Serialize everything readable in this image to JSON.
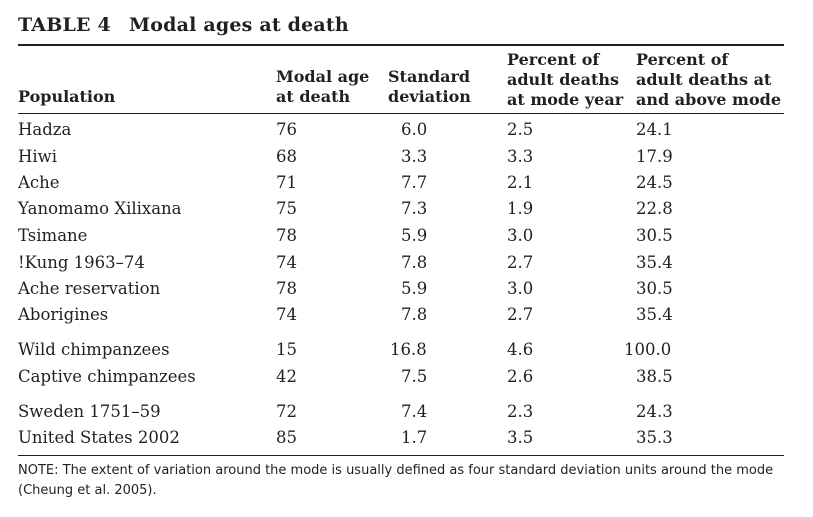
{
  "table": {
    "number": "TABLE 4",
    "title": "Modal ages at death",
    "headers": {
      "population": "Population",
      "modal_age": [
        "Modal age",
        "at death"
      ],
      "sd": [
        "Standard",
        "deviation"
      ],
      "pct_mode": [
        "Percent of",
        "adult deaths",
        "at mode year"
      ],
      "pct_above": [
        "Percent of",
        "adult deaths at",
        "and above mode"
      ]
    },
    "rows": [
      {
        "population": "Hadza",
        "modal_age": "76",
        "sd": "6.0",
        "pct_mode": "2.5",
        "pct_above": "24.1"
      },
      {
        "population": "Hiwi",
        "modal_age": "68",
        "sd": "3.3",
        "pct_mode": "3.3",
        "pct_above": "17.9"
      },
      {
        "population": "Ache",
        "modal_age": "71",
        "sd": "7.7",
        "pct_mode": "2.1",
        "pct_above": "24.5"
      },
      {
        "population": "Yanomamo Xilixana",
        "modal_age": "75",
        "sd": "7.3",
        "pct_mode": "1.9",
        "pct_above": "22.8"
      },
      {
        "population": "Tsimane",
        "modal_age": "78",
        "sd": "5.9",
        "pct_mode": "3.0",
        "pct_above": "30.5"
      },
      {
        "population": "!Kung 1963–74",
        "modal_age": "74",
        "sd": "7.8",
        "pct_mode": "2.7",
        "pct_above": "35.4"
      },
      {
        "population": "Ache reservation",
        "modal_age": "78",
        "sd": "5.9",
        "pct_mode": "3.0",
        "pct_above": "30.5"
      },
      {
        "population": "Aborigines",
        "modal_age": "74",
        "sd": "7.8",
        "pct_mode": "2.7",
        "pct_above": "35.4"
      },
      {
        "population": "Wild chimpanzees",
        "modal_age": "15",
        "sd": "16.8",
        "pct_mode": "4.6",
        "pct_above": "100.0"
      },
      {
        "population": "Captive chimpanzees",
        "modal_age": "42",
        "sd": "7.5",
        "pct_mode": "2.6",
        "pct_above": "38.5"
      },
      {
        "population": "Sweden 1751–59",
        "modal_age": "72",
        "sd": "7.4",
        "pct_mode": "2.3",
        "pct_above": "24.3"
      },
      {
        "population": "United States 2002",
        "modal_age": "85",
        "sd": "1.7",
        "pct_mode": "3.5",
        "pct_above": "35.3"
      }
    ],
    "note": "NOTE: The extent of variation around the mode is usually defined as four standard deviation units around the mode (Cheung et al. 2005)."
  }
}
